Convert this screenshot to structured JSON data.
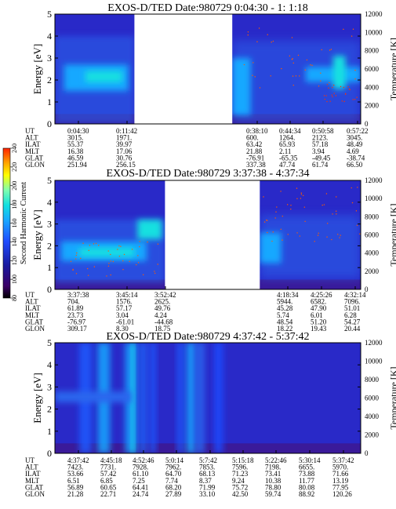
{
  "colorbar": {
    "ticks": [
      "80",
      "100",
      "120",
      "140",
      "160",
      "180",
      "200",
      "220",
      "240"
    ],
    "label": "Second Harmonic Current",
    "colors": [
      "#000000",
      "#3a0066",
      "#1a1aa0",
      "#1e4cff",
      "#19a8ff",
      "#12e0e0",
      "#7fffb0",
      "#ffff00",
      "#ff9a00",
      "#ff2200"
    ]
  },
  "chart_data": [
    {
      "type": "heatmap",
      "title": "EXOS-D/TED    Date:980729  0:04:30 - 1: 1:18",
      "ylabel": "Energy [eV]",
      "y2label": "Temperature [K]",
      "ylim": [
        0,
        5
      ],
      "y_ticks": [
        "0",
        "1",
        "2",
        "3",
        "4",
        "5"
      ],
      "y2lim": [
        0,
        12000
      ],
      "y2_ticks": [
        "0",
        "2000",
        "4000",
        "6000",
        "8000",
        "10000",
        "12000"
      ],
      "data_gaps": [
        [
          0.26,
          0.58
        ]
      ],
      "rows": [
        {
          "name": "UT",
          "values": [
            "0:04:30",
            "0:11:42",
            "",
            "0:38:10",
            "0:44:34",
            "0:50:58",
            "0:57:22"
          ]
        },
        {
          "name": "ALT",
          "values": [
            "3015.",
            "1971.",
            "",
            "600.",
            "1264.",
            "2123.",
            "3045."
          ]
        },
        {
          "name": "ILAT",
          "values": [
            "55.37",
            "39.97",
            "",
            "63.42",
            "65.93",
            "57.18",
            "48.49"
          ]
        },
        {
          "name": "MLT",
          "values": [
            "16.38",
            "17.06",
            "",
            "21.88",
            "2.11",
            "3.94",
            "4.69"
          ]
        },
        {
          "name": "GLAT",
          "values": [
            "46.59",
            "30.76",
            "",
            "-76.91",
            "-65.35",
            "-49.45",
            "-38.74"
          ]
        },
        {
          "name": "GLON",
          "values": [
            "251.94",
            "256.15",
            "",
            "337.38",
            "47.74",
            "61.74",
            "66.50"
          ]
        }
      ]
    },
    {
      "type": "heatmap",
      "title": "EXOS-D/TED    Date:980729  3:37:38 - 4:37:34",
      "ylabel": "Energy [eV]",
      "y2label": "Temperature [K]",
      "ylim": [
        0,
        5
      ],
      "y_ticks": [
        "0",
        "1",
        "2",
        "3",
        "4",
        "5"
      ],
      "y2lim": [
        0,
        12000
      ],
      "y2_ticks": [
        "0",
        "2000",
        "4000",
        "6000",
        "8000",
        "10000",
        "12000"
      ],
      "data_gaps": [
        [
          0.36,
          0.67
        ]
      ],
      "rows": [
        {
          "name": "UT",
          "values": [
            "3:37:38",
            "3:45:14",
            "3:52:42",
            "",
            "4:18:34",
            "4:25:26",
            "4:32:14"
          ]
        },
        {
          "name": "ALT",
          "values": [
            "704.",
            "1576.",
            "2625.",
            "",
            "5944.",
            "6582.",
            "7096."
          ]
        },
        {
          "name": "ILAT",
          "values": [
            "61.89",
            "57.17",
            "49.76",
            "",
            "45.28",
            "47.90",
            "51.01"
          ]
        },
        {
          "name": "MLT",
          "values": [
            "23.73",
            "3.04",
            "4.24",
            "",
            "5.74",
            "6.01",
            "6.28"
          ]
        },
        {
          "name": "GLAT",
          "values": [
            "-76.97",
            "-61.01",
            "-44.68",
            "",
            "48.54",
            "51.20",
            "54.27"
          ]
        },
        {
          "name": "GLON",
          "values": [
            "309.17",
            "8.30",
            "18.75",
            "",
            "18.22",
            "19.43",
            "20.44"
          ]
        }
      ]
    },
    {
      "type": "heatmap",
      "title": "EXOS-D/TED    Date:980729  4:37:42 - 5:37:42",
      "ylabel": "Energy [eV]",
      "y2label": "Temperature [K]",
      "ylim": [
        0,
        5
      ],
      "y_ticks": [
        "0",
        "1",
        "2",
        "3",
        "4",
        "5"
      ],
      "y2lim": [
        0,
        12000
      ],
      "y2_ticks": [
        "0",
        "2000",
        "4000",
        "6000",
        "8000",
        "10000",
        "12000"
      ],
      "data_gaps": [],
      "rows": [
        {
          "name": "UT",
          "values": [
            "4:37:42",
            "4:45:18",
            "4:52:46",
            "5:0:14",
            "5:7:42",
            "5:15:18",
            "5:22:46",
            "5:30:14",
            "5:37:42"
          ]
        },
        {
          "name": "ALT",
          "values": [
            "7423.",
            "7731.",
            "7928.",
            "7962.",
            "7853.",
            "7596.",
            "7198.",
            "6655.",
            "5970."
          ]
        },
        {
          "name": "ILAT",
          "values": [
            "53.66",
            "57.42",
            "61.10",
            "64.70",
            "68.13",
            "71.23",
            "73.41",
            "73.88",
            "71.66"
          ]
        },
        {
          "name": "MLT",
          "values": [
            "6.51",
            "6.85",
            "7.25",
            "7.74",
            "8.37",
            "9.24",
            "10.38",
            "11.77",
            "13.19"
          ]
        },
        {
          "name": "GLAT",
          "values": [
            "56.89",
            "60.65",
            "64.41",
            "68.20",
            "71.99",
            "75.72",
            "78.80",
            "80.08",
            "77.95"
          ]
        },
        {
          "name": "GLON",
          "values": [
            "21.28",
            "22.71",
            "24.74",
            "27.89",
            "33.10",
            "42.50",
            "59.74",
            "88.92",
            "120.26"
          ]
        }
      ]
    }
  ]
}
